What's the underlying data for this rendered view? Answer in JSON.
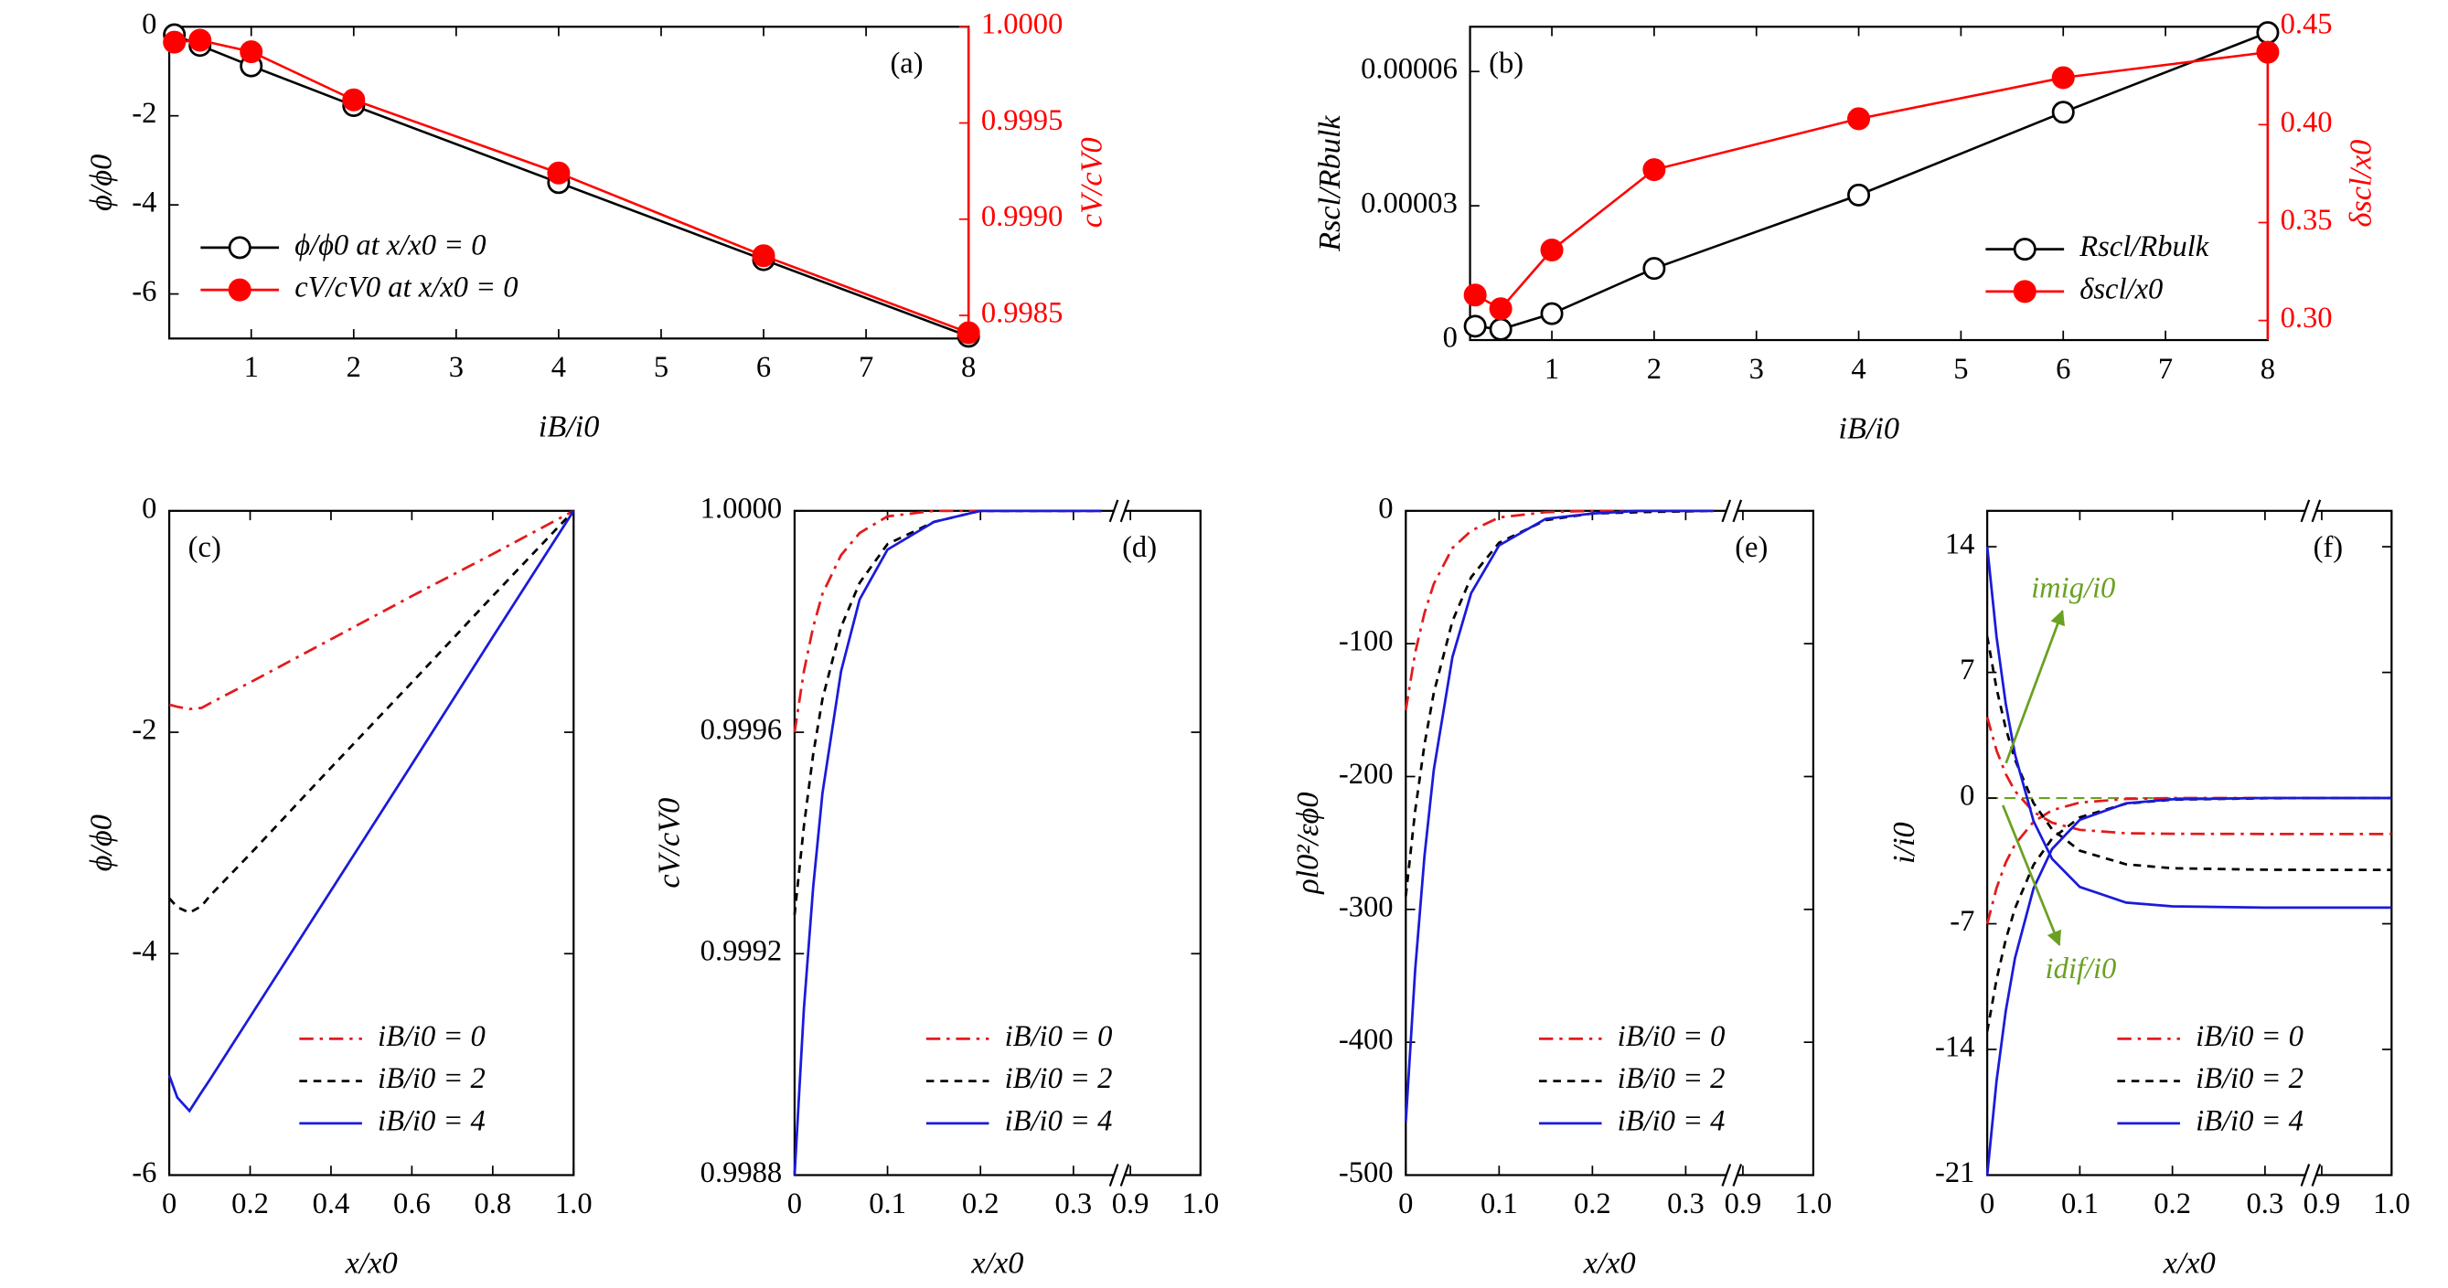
{
  "chart_data": [
    {
      "type": "line",
      "panel": "(a)",
      "panel_corner": "upper right",
      "legend": "lower left",
      "xlabel": "iB/i0",
      "ylabel": "ϕ/ϕ0",
      "y2label": "cV/cV0",
      "y2color": "#ff0000",
      "x": [
        0.25,
        0.5,
        1,
        2,
        4,
        6,
        8
      ],
      "xlim": [
        0.2,
        8
      ],
      "xticks": [
        1,
        2,
        3,
        4,
        5,
        6,
        7,
        8
      ],
      "ylim": [
        -7,
        0
      ],
      "yticks": [
        0,
        -2,
        -4,
        -6
      ],
      "y2lim": [
        0.99838,
        1
      ],
      "y2ticks": [
        {
          "value": 1,
          "label": "1.0000"
        },
        0.9995,
        {
          "value": 0.999,
          "label": "0.9990"
        },
        0.9985
      ],
      "series": [
        {
          "name": "ϕ/ϕ0 at x/x0 = 0",
          "color": "#000000",
          "marker": "open",
          "values": [
            -0.18,
            -0.42,
            -0.88,
            -1.77,
            -3.5,
            -5.23,
            -6.95
          ]
        },
        {
          "name": "cV/cV0 at x/x0 = 0",
          "color": "#ff0000",
          "marker": "filled",
          "axis": "y2",
          "values": [
            0.99992,
            0.99993,
            0.99987,
            0.99962,
            0.99924,
            0.99881,
            0.99841
          ]
        }
      ]
    },
    {
      "type": "line",
      "panel": "(b)",
      "panel_corner": "upper left",
      "legend": "lower right",
      "xlabel": "iB/i0",
      "ylabel": "Rscl/Rbulk",
      "y2label": "δscl/x0",
      "y2color": "#ff0000",
      "x": [
        0.25,
        0.5,
        1,
        2,
        4,
        6,
        8
      ],
      "xlim": [
        0.2,
        8
      ],
      "xticks": [
        1,
        2,
        3,
        4,
        5,
        6,
        7,
        8
      ],
      "ylim": [
        0,
        7e-05
      ],
      "yticks": [
        0,
        3e-05,
        6e-05
      ],
      "y2lim": [
        0.29,
        0.45
      ],
      "y2ticks": [
        {
          "value": 0.3,
          "label": "0.30"
        },
        0.35,
        {
          "value": 0.4,
          "label": "0.40"
        },
        0.45
      ],
      "series": [
        {
          "name": "Rscl/Rbulk",
          "color": "#000000",
          "marker": "open",
          "values": [
            3.1e-06,
            2.4e-06,
            5.9e-06,
            1.6e-05,
            3.24e-05,
            5.09e-05,
            6.87e-05
          ]
        },
        {
          "name": "δscl/x0",
          "color": "#ff0000",
          "marker": "filled",
          "axis": "y2",
          "values": [
            0.313,
            0.306,
            0.336,
            0.377,
            0.403,
            0.424,
            0.437
          ]
        }
      ]
    },
    {
      "type": "line",
      "panel": "(c)",
      "panel_corner": "upper left",
      "legend": "lower right",
      "xlabel": "x/x0",
      "ylabel": "ϕ/ϕ0",
      "x": [
        0,
        0.02,
        0.05,
        0.08,
        0.1,
        0.2,
        0.4,
        0.6,
        0.8,
        1
      ],
      "xlim": [
        0,
        1
      ],
      "xticks": [
        0,
        0.2,
        0.4,
        0.6,
        0.8,
        {
          "value": 1,
          "label": "1.0"
        }
      ],
      "ylim": [
        -6,
        0
      ],
      "yticks": [
        0,
        -2,
        -4,
        -6
      ],
      "series": [
        {
          "name": "iB/i0 = 0",
          "color": "#e31a1c",
          "dash": "dashdot",
          "values": [
            -1.75,
            -1.77,
            -1.79,
            -1.78,
            -1.74,
            -1.55,
            -1.16,
            -0.77,
            -0.39,
            0
          ]
        },
        {
          "name": "iB/i0 = 2",
          "color": "#000000",
          "dash": "dashed",
          "values": [
            -3.5,
            -3.58,
            -3.63,
            -3.57,
            -3.48,
            -3.1,
            -2.32,
            -1.55,
            -0.77,
            0
          ]
        },
        {
          "name": "iB/i0 = 4",
          "color": "#1a1adb",
          "dash": "solid",
          "values": [
            -5.1,
            -5.3,
            -5.42,
            -5.25,
            -5.14,
            -4.57,
            -3.43,
            -2.29,
            -1.14,
            0
          ]
        }
      ]
    },
    {
      "type": "line",
      "panel": "(d)",
      "panel_corner": "upper right",
      "legend": "lower right",
      "xlabel": "x/x0",
      "ylabel": "cV/cV0",
      "x": [
        0,
        0.01,
        0.02,
        0.03,
        0.05,
        0.07,
        0.1,
        0.15,
        0.2,
        0.25,
        0.33
      ],
      "xlim": [
        0,
        1
      ],
      "xbreak": [
        0.345,
        0.89
      ],
      "xticks": [
        0,
        0.1,
        0.2,
        0.3,
        0.9,
        {
          "value": 1,
          "label": "1.0"
        }
      ],
      "ylim": [
        0.9988,
        1
      ],
      "yticks": [
        0.9988,
        0.9992,
        0.9996,
        {
          "value": 1,
          "label": "1.0000"
        }
      ],
      "series": [
        {
          "name": "iB/i0 = 0",
          "color": "#e31a1c",
          "dash": "dashdot",
          "values": [
            0.9996,
            0.99971,
            0.99979,
            0.99985,
            0.99992,
            0.99996,
            0.99999,
            1,
            1,
            1,
            1
          ]
        },
        {
          "name": "iB/i0 = 2",
          "color": "#000000",
          "dash": "dashed",
          "values": [
            0.99927,
            0.99943,
            0.99956,
            0.99966,
            0.99979,
            0.99987,
            0.99994,
            0.99998,
            1,
            1,
            1
          ]
        },
        {
          "name": "iB/i0 = 4",
          "color": "#1a1adb",
          "dash": "solid",
          "values": [
            0.9988,
            0.9991,
            0.99932,
            0.99949,
            0.99971,
            0.99984,
            0.99993,
            0.99998,
            1,
            1,
            1
          ]
        }
      ]
    },
    {
      "type": "line",
      "panel": "(e)",
      "panel_corner": "upper right",
      "legend": "lower right",
      "xlabel": "x/x0",
      "ylabel": "ρl0²/εϕ0",
      "x": [
        0,
        0.01,
        0.02,
        0.03,
        0.05,
        0.07,
        0.1,
        0.15,
        0.2,
        0.25,
        0.33
      ],
      "xlim": [
        0,
        1
      ],
      "xbreak": [
        0.345,
        0.89
      ],
      "xticks": [
        0,
        0.1,
        0.2,
        0.3,
        0.9,
        {
          "value": 1,
          "label": "1.0"
        }
      ],
      "ylim": [
        -500,
        0
      ],
      "yticks": [
        0,
        -100,
        -200,
        -300,
        -400,
        -500
      ],
      "series": [
        {
          "name": "iB/i0 = 0",
          "color": "#e31a1c",
          "dash": "dashdot",
          "values": [
            -150,
            -107,
            -77,
            -55,
            -28,
            -15,
            -5,
            -1,
            0,
            0,
            0
          ]
        },
        {
          "name": "iB/i0 = 2",
          "color": "#000000",
          "dash": "dashed",
          "values": [
            -290,
            -226,
            -176,
            -137,
            -83,
            -50,
            -24,
            -7,
            -2,
            -1,
            0
          ]
        },
        {
          "name": "iB/i0 = 4",
          "color": "#1a1adb",
          "dash": "solid",
          "values": [
            -460,
            -346,
            -260,
            -195,
            -110,
            -62,
            -26,
            -6,
            -2,
            0,
            0
          ]
        }
      ]
    },
    {
      "type": "line",
      "panel": "(f)",
      "panel_corner": "upper right",
      "legend": "lower right",
      "xlabel": "x/x0",
      "ylabel": "i/i0",
      "x": [
        0,
        0.01,
        0.02,
        0.03,
        0.05,
        0.07,
        0.1,
        0.15,
        0.2,
        0.3,
        0.9,
        1
      ],
      "xlim": [
        0,
        1
      ],
      "xbreak": [
        0.345,
        0.89
      ],
      "xticks": [
        0,
        0.1,
        0.2,
        0.3,
        0.9,
        {
          "value": 1,
          "label": "1.0"
        }
      ],
      "ylim": [
        -21,
        16
      ],
      "yticks": [
        14,
        7,
        0,
        -7,
        -14,
        -21
      ],
      "hline": 0,
      "hline_color": "#6aa121",
      "annotations": [
        {
          "text": "imig/i0",
          "color": "#6aa121"
        },
        {
          "text": "idif/i0",
          "color": "#6aa121"
        }
      ],
      "series": [
        {
          "name": "iB/i0 = 0",
          "color": "#e31a1c",
          "dash": "dashdot",
          "values": [
            4.5,
            2.66,
            1.34,
            0.39,
            -0.77,
            -1.37,
            -1.77,
            -1.96,
            -1.99,
            -2,
            -2,
            -2
          ],
          "dif_values": [
            -7,
            -5.02,
            -3.59,
            -2.58,
            -1.32,
            -0.68,
            -0.25,
            -0.05,
            0,
            0,
            0,
            0
          ]
        },
        {
          "name": "iB/i0 = 2",
          "color": "#000000",
          "dash": "dashed",
          "values": [
            9,
            6.12,
            3.88,
            2.14,
            -0.28,
            -1.74,
            -2.93,
            -3.69,
            -3.91,
            -3.99,
            -4,
            -4
          ],
          "dif_values": [
            -13,
            -10.12,
            -7.88,
            -6.14,
            -3.72,
            -2.26,
            -1.07,
            -0.31,
            -0.09,
            -0.01,
            0,
            0
          ]
        },
        {
          "name": "iB/i0 = 4",
          "color": "#1a1adb",
          "dash": "solid",
          "values": [
            14,
            9,
            5.25,
            2.43,
            -1.28,
            -3.38,
            -4.95,
            -5.82,
            -6.03,
            -6.1,
            -6.1,
            -6.1
          ],
          "dif_values": [
            -21,
            -15.78,
            -11.86,
            -8.91,
            -5.03,
            -2.84,
            -1.21,
            -0.29,
            -0.07,
            0,
            0,
            0
          ]
        }
      ]
    }
  ]
}
